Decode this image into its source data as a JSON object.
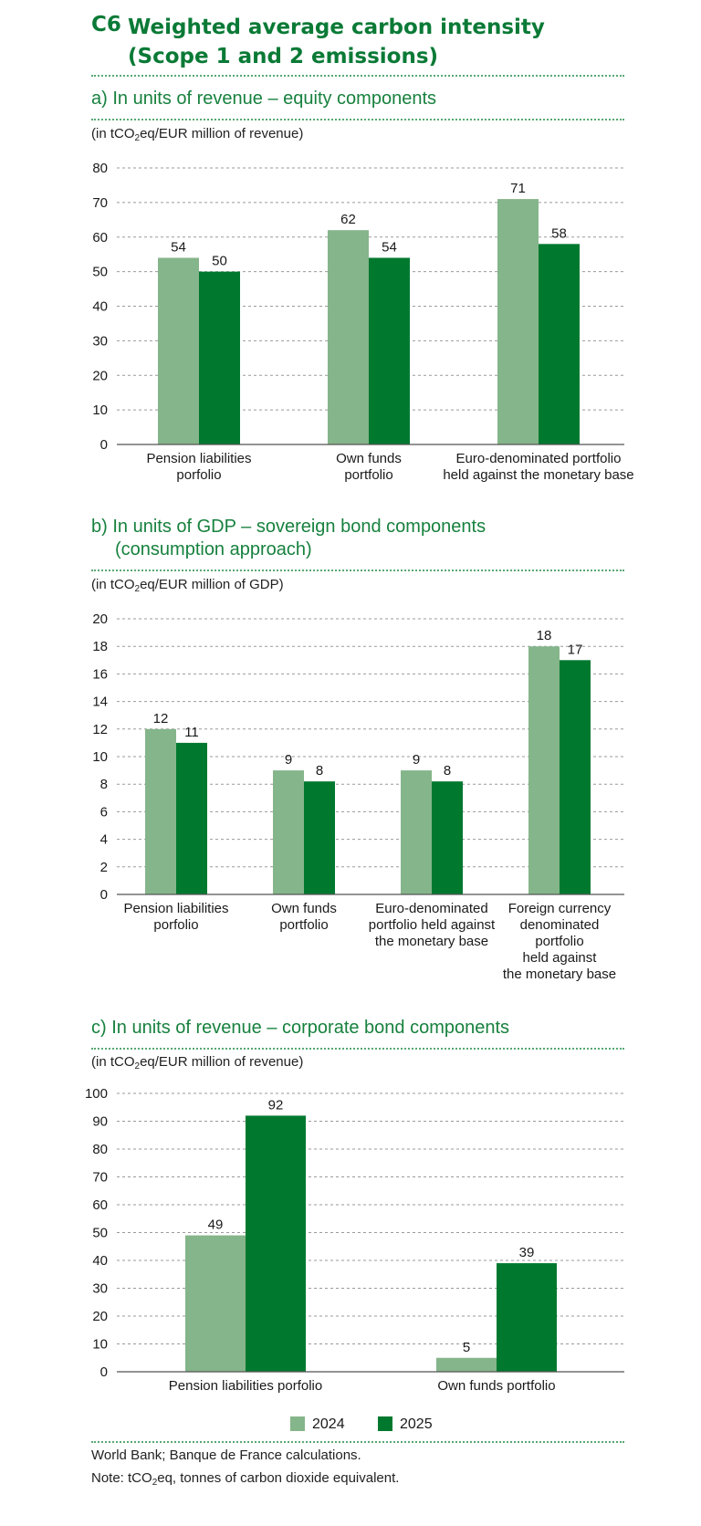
{
  "header": {
    "code": "C6",
    "title_line1": "Weighted average carbon intensity",
    "title_line2": "(Scope 1 and 2 emissions)"
  },
  "colors": {
    "series_2024": "#85b58a",
    "series_2025": "#00792f",
    "accent": "#0a7a36"
  },
  "panels": {
    "a": {
      "subtitle": "a)  In units of revenue – equity components",
      "unit_pre": "(in tCO",
      "unit_sub": "2",
      "unit_post": "eq/EUR million of revenue)"
    },
    "b": {
      "subtitle_line1": "b)  In units of GDP – sovereign bond components",
      "subtitle_line2": "(consumption approach)",
      "unit_pre": "(in tCO",
      "unit_sub": "2",
      "unit_post": "eq/EUR million of GDP)"
    },
    "c": {
      "subtitle": "c)  In units of revenue – corporate bond components",
      "unit_pre": "(in tCO",
      "unit_sub": "2",
      "unit_post": "eq/EUR million of revenue)"
    }
  },
  "legend": {
    "label_2024": "2024",
    "label_2025": "2025"
  },
  "source": {
    "line1": "World Bank; Banque de France calculations.",
    "note_pre": "Note: tCO",
    "note_sub": "2",
    "note_post": "eq, tonnes of carbon dioxide equivalent."
  },
  "chart_data": [
    {
      "type": "bar",
      "categories": [
        [
          "Pension liabilities",
          "porfolio"
        ],
        [
          "Own funds",
          "portfolio"
        ],
        [
          "Euro-denominated portfolio",
          "held against the monetary base"
        ]
      ],
      "series": [
        {
          "name": "2024",
          "values": [
            54,
            62,
            71
          ]
        },
        {
          "name": "2025",
          "values": [
            50,
            54,
            58
          ]
        }
      ],
      "ylim": [
        0,
        80
      ],
      "yticks": [
        0,
        10,
        20,
        30,
        40,
        50,
        60,
        70,
        80
      ],
      "grid": true
    },
    {
      "type": "bar",
      "categories": [
        [
          "Pension liabilities",
          "porfolio"
        ],
        [
          "Own funds",
          "portfolio"
        ],
        [
          "Euro-denominated",
          "portfolio held against",
          "the monetary base"
        ],
        [
          "Foreign currency",
          "denominated",
          "portfolio",
          "held against",
          "the monetary base"
        ]
      ],
      "series": [
        {
          "name": "2024",
          "values": [
            12,
            9,
            9,
            18
          ]
        },
        {
          "name": "2025",
          "values": [
            11,
            8.2,
            8.2,
            17
          ]
        }
      ],
      "data_labels": [
        [
          "12",
          "9",
          "9",
          "18"
        ],
        [
          "11",
          "8",
          "8",
          "17"
        ]
      ],
      "ylim": [
        0,
        20
      ],
      "yticks": [
        0,
        2,
        4,
        6,
        8,
        10,
        12,
        14,
        16,
        18,
        20
      ],
      "grid": true
    },
    {
      "type": "bar",
      "categories": [
        [
          "Pension liabilities porfolio"
        ],
        [
          "Own funds portfolio"
        ]
      ],
      "series": [
        {
          "name": "2024",
          "values": [
            49,
            5
          ]
        },
        {
          "name": "2025",
          "values": [
            92,
            39
          ]
        }
      ],
      "ylim": [
        0,
        100
      ],
      "yticks": [
        0,
        10,
        20,
        30,
        40,
        50,
        60,
        70,
        80,
        90,
        100
      ],
      "grid": true
    }
  ]
}
